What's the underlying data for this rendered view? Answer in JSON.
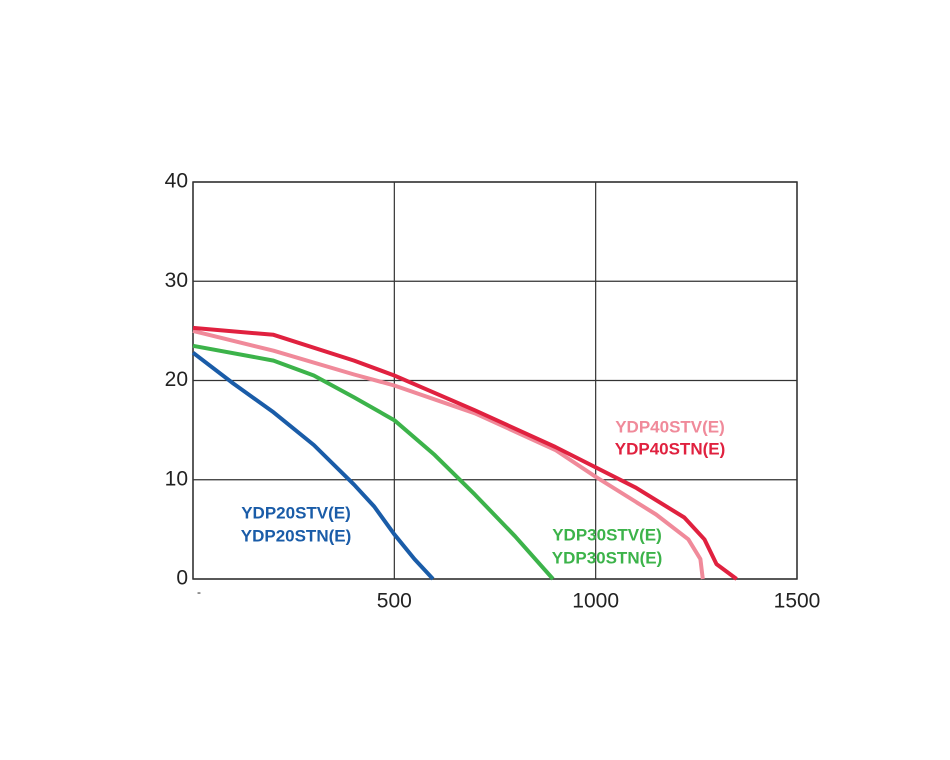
{
  "chart_data": {
    "type": "line",
    "xlim": [
      0,
      1500
    ],
    "ylim": [
      0,
      40
    ],
    "xticks": [
      {
        "value": 0,
        "label": "-"
      },
      500,
      1000,
      1500
    ],
    "yticks": [
      0,
      10,
      20,
      30,
      40
    ],
    "grid": true,
    "series": [
      {
        "name": "YDP40STV(E)",
        "color": "#f08a9a",
        "x": [
          0,
          200,
          400,
          500,
          700,
          900,
          1000,
          1150,
          1230,
          1260,
          1266
        ],
        "values": [
          25,
          23,
          20.6,
          19.5,
          16.7,
          13,
          10.3,
          6.5,
          4,
          2,
          0
        ]
      },
      {
        "name": "YDP40STN(E)",
        "color": "#e0213f",
        "x": [
          0,
          200,
          400,
          500,
          700,
          900,
          1100,
          1220,
          1270,
          1300,
          1350
        ],
        "values": [
          25.3,
          24.6,
          22,
          20.5,
          17,
          13.3,
          9.2,
          6.2,
          4,
          1.5,
          0
        ]
      },
      {
        "name": "YDP30STV(E)",
        "color": "#3cb34a",
        "x": [
          0,
          200,
          300,
          400,
          500,
          600,
          700,
          800,
          894
        ],
        "values": [
          23.5,
          22,
          20.5,
          18.3,
          16,
          12.5,
          8.5,
          4.3,
          0
        ]
      },
      {
        "name": "YDP30STN(E)",
        "color": "#3cb34a",
        "x": [
          0,
          200,
          300,
          400,
          500,
          600,
          700,
          800,
          894
        ],
        "values": [
          23.5,
          22,
          20.5,
          18.3,
          16,
          12.5,
          8.5,
          4.3,
          0
        ]
      },
      {
        "name": "YDP20STV(E)",
        "color": "#1a5ca8",
        "x": [
          0,
          100,
          200,
          300,
          400,
          450,
          500,
          550,
          596
        ],
        "values": [
          22.8,
          19.7,
          16.8,
          13.5,
          9.5,
          7.3,
          4.5,
          2,
          0
        ]
      },
      {
        "name": "YDP20STN(E)",
        "color": "#1a5ca8",
        "x": [
          0,
          100,
          200,
          300,
          400,
          450,
          500,
          550,
          596
        ],
        "values": [
          22.8,
          19.7,
          16.8,
          13.5,
          9.5,
          7.3,
          4.5,
          2,
          0
        ]
      }
    ]
  }
}
